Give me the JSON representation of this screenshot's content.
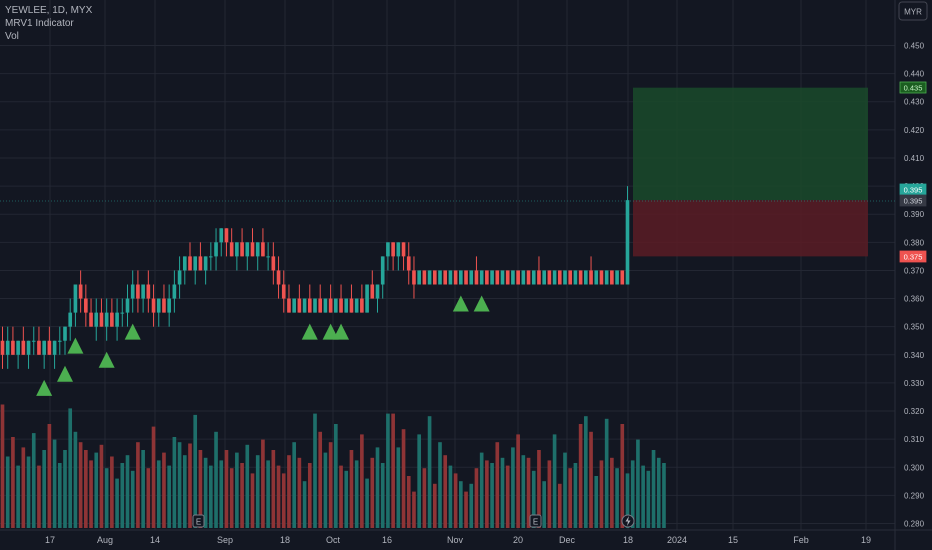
{
  "header": {
    "symbol_line": "YEWLEE, 1D, MYX",
    "indicator": "MRV1 Indicator",
    "volume": "Vol"
  },
  "currency": "MYR",
  "colors": {
    "background": "#131722",
    "grid": "#232733",
    "text": "#b2b5be",
    "up": "#26a69a",
    "down": "#ef5350",
    "signal": "#4caf50",
    "vol_up": "#1e6f6a",
    "vol_down": "#8e3436",
    "profit_zone": "#1a4a2a",
    "loss_zone": "#5a1c24"
  },
  "chart_data": {
    "type": "candlestick",
    "y_axis": {
      "min": 0.28,
      "max": 0.45,
      "ticks": [
        "0.450",
        "0.440",
        "0.430",
        "0.420",
        "0.410",
        "0.400",
        "0.390",
        "0.380",
        "0.370",
        "0.360",
        "0.350",
        "0.340",
        "0.330",
        "0.320",
        "0.310",
        "0.300",
        "0.290",
        "0.280"
      ]
    },
    "x_axis": {
      "ticks": [
        "17",
        "Aug",
        "14",
        "Sep",
        "18",
        "Oct",
        "16",
        "Nov",
        "20",
        "Dec",
        "18",
        "2024",
        "15",
        "Feb",
        "19"
      ]
    },
    "price_labels": [
      {
        "value": "0.435",
        "kind": "target"
      },
      {
        "value": "0.395",
        "kind": "current"
      },
      {
        "value": "0.395",
        "kind": "entry"
      },
      {
        "value": "0.375",
        "kind": "stop"
      }
    ],
    "levels": {
      "target": 0.435,
      "entry": 0.395,
      "stop": 0.375
    },
    "candles": [
      [
        0.345,
        0.35,
        0.335,
        0.34
      ],
      [
        0.34,
        0.35,
        0.335,
        0.345
      ],
      [
        0.345,
        0.35,
        0.34,
        0.34
      ],
      [
        0.34,
        0.345,
        0.335,
        0.345
      ],
      [
        0.345,
        0.35,
        0.34,
        0.34
      ],
      [
        0.34,
        0.345,
        0.335,
        0.345
      ],
      [
        0.345,
        0.35,
        0.34,
        0.345
      ],
      [
        0.345,
        0.35,
        0.34,
        0.34
      ],
      [
        0.34,
        0.345,
        0.335,
        0.345
      ],
      [
        0.345,
        0.35,
        0.34,
        0.34
      ],
      [
        0.34,
        0.345,
        0.335,
        0.345
      ],
      [
        0.345,
        0.35,
        0.34,
        0.345
      ],
      [
        0.345,
        0.35,
        0.34,
        0.35
      ],
      [
        0.35,
        0.36,
        0.345,
        0.355
      ],
      [
        0.355,
        0.365,
        0.35,
        0.365
      ],
      [
        0.365,
        0.37,
        0.355,
        0.36
      ],
      [
        0.36,
        0.365,
        0.35,
        0.355
      ],
      [
        0.355,
        0.36,
        0.35,
        0.35
      ],
      [
        0.35,
        0.36,
        0.345,
        0.355
      ],
      [
        0.355,
        0.36,
        0.35,
        0.35
      ],
      [
        0.35,
        0.36,
        0.345,
        0.355
      ],
      [
        0.355,
        0.36,
        0.35,
        0.35
      ],
      [
        0.35,
        0.36,
        0.345,
        0.355
      ],
      [
        0.355,
        0.36,
        0.35,
        0.355
      ],
      [
        0.355,
        0.365,
        0.35,
        0.36
      ],
      [
        0.36,
        0.37,
        0.355,
        0.365
      ],
      [
        0.365,
        0.37,
        0.355,
        0.36
      ],
      [
        0.36,
        0.365,
        0.355,
        0.365
      ],
      [
        0.365,
        0.37,
        0.355,
        0.36
      ],
      [
        0.36,
        0.365,
        0.35,
        0.355
      ],
      [
        0.355,
        0.36,
        0.35,
        0.36
      ],
      [
        0.36,
        0.365,
        0.355,
        0.355
      ],
      [
        0.355,
        0.365,
        0.35,
        0.36
      ],
      [
        0.36,
        0.37,
        0.355,
        0.365
      ],
      [
        0.365,
        0.375,
        0.36,
        0.37
      ],
      [
        0.37,
        0.375,
        0.365,
        0.375
      ],
      [
        0.375,
        0.38,
        0.37,
        0.37
      ],
      [
        0.37,
        0.375,
        0.365,
        0.375
      ],
      [
        0.375,
        0.38,
        0.37,
        0.37
      ],
      [
        0.37,
        0.375,
        0.365,
        0.375
      ],
      [
        0.375,
        0.38,
        0.37,
        0.375
      ],
      [
        0.375,
        0.385,
        0.37,
        0.38
      ],
      [
        0.38,
        0.385,
        0.375,
        0.385
      ],
      [
        0.385,
        0.385,
        0.375,
        0.38
      ],
      [
        0.38,
        0.385,
        0.375,
        0.375
      ],
      [
        0.375,
        0.38,
        0.37,
        0.38
      ],
      [
        0.38,
        0.385,
        0.375,
        0.375
      ],
      [
        0.375,
        0.38,
        0.37,
        0.38
      ],
      [
        0.38,
        0.385,
        0.375,
        0.375
      ],
      [
        0.375,
        0.38,
        0.37,
        0.38
      ],
      [
        0.38,
        0.385,
        0.375,
        0.375
      ],
      [
        0.375,
        0.38,
        0.37,
        0.375
      ],
      [
        0.375,
        0.38,
        0.365,
        0.37
      ],
      [
        0.37,
        0.375,
        0.36,
        0.365
      ],
      [
        0.365,
        0.37,
        0.355,
        0.36
      ],
      [
        0.36,
        0.365,
        0.355,
        0.355
      ],
      [
        0.355,
        0.36,
        0.355,
        0.36
      ],
      [
        0.36,
        0.365,
        0.355,
        0.355
      ],
      [
        0.355,
        0.36,
        0.355,
        0.36
      ],
      [
        0.36,
        0.365,
        0.355,
        0.355
      ],
      [
        0.355,
        0.36,
        0.355,
        0.36
      ],
      [
        0.36,
        0.365,
        0.355,
        0.355
      ],
      [
        0.355,
        0.36,
        0.355,
        0.36
      ],
      [
        0.36,
        0.365,
        0.355,
        0.355
      ],
      [
        0.355,
        0.36,
        0.355,
        0.36
      ],
      [
        0.36,
        0.365,
        0.355,
        0.355
      ],
      [
        0.355,
        0.36,
        0.355,
        0.36
      ],
      [
        0.36,
        0.365,
        0.355,
        0.355
      ],
      [
        0.355,
        0.36,
        0.355,
        0.36
      ],
      [
        0.36,
        0.365,
        0.355,
        0.355
      ],
      [
        0.355,
        0.365,
        0.355,
        0.365
      ],
      [
        0.365,
        0.37,
        0.36,
        0.36
      ],
      [
        0.36,
        0.365,
        0.355,
        0.365
      ],
      [
        0.365,
        0.375,
        0.36,
        0.375
      ],
      [
        0.375,
        0.38,
        0.37,
        0.38
      ],
      [
        0.38,
        0.38,
        0.37,
        0.375
      ],
      [
        0.375,
        0.38,
        0.37,
        0.38
      ],
      [
        0.38,
        0.38,
        0.37,
        0.375
      ],
      [
        0.375,
        0.38,
        0.365,
        0.37
      ],
      [
        0.37,
        0.375,
        0.36,
        0.365
      ],
      [
        0.365,
        0.37,
        0.365,
        0.37
      ],
      [
        0.37,
        0.37,
        0.365,
        0.365
      ],
      [
        0.365,
        0.37,
        0.365,
        0.37
      ],
      [
        0.37,
        0.37,
        0.365,
        0.365
      ],
      [
        0.365,
        0.37,
        0.365,
        0.37
      ],
      [
        0.37,
        0.37,
        0.365,
        0.365
      ],
      [
        0.365,
        0.37,
        0.365,
        0.37
      ],
      [
        0.37,
        0.37,
        0.365,
        0.365
      ],
      [
        0.365,
        0.37,
        0.365,
        0.37
      ],
      [
        0.37,
        0.37,
        0.365,
        0.365
      ],
      [
        0.365,
        0.37,
        0.365,
        0.37
      ],
      [
        0.37,
        0.375,
        0.365,
        0.365
      ],
      [
        0.365,
        0.37,
        0.365,
        0.37
      ],
      [
        0.37,
        0.37,
        0.365,
        0.365
      ],
      [
        0.365,
        0.37,
        0.365,
        0.37
      ],
      [
        0.37,
        0.37,
        0.365,
        0.365
      ],
      [
        0.365,
        0.37,
        0.365,
        0.37
      ],
      [
        0.37,
        0.37,
        0.365,
        0.365
      ],
      [
        0.365,
        0.37,
        0.365,
        0.37
      ],
      [
        0.37,
        0.37,
        0.365,
        0.365
      ],
      [
        0.365,
        0.37,
        0.365,
        0.37
      ],
      [
        0.37,
        0.37,
        0.365,
        0.365
      ],
      [
        0.365,
        0.37,
        0.365,
        0.37
      ],
      [
        0.37,
        0.375,
        0.365,
        0.365
      ],
      [
        0.365,
        0.37,
        0.365,
        0.37
      ],
      [
        0.37,
        0.37,
        0.365,
        0.365
      ],
      [
        0.365,
        0.37,
        0.365,
        0.37
      ],
      [
        0.37,
        0.37,
        0.365,
        0.365
      ],
      [
        0.365,
        0.37,
        0.365,
        0.37
      ],
      [
        0.37,
        0.37,
        0.365,
        0.365
      ],
      [
        0.365,
        0.37,
        0.365,
        0.37
      ],
      [
        0.37,
        0.37,
        0.365,
        0.365
      ],
      [
        0.365,
        0.37,
        0.365,
        0.37
      ],
      [
        0.37,
        0.375,
        0.365,
        0.365
      ],
      [
        0.365,
        0.37,
        0.365,
        0.37
      ],
      [
        0.37,
        0.37,
        0.365,
        0.365
      ],
      [
        0.365,
        0.37,
        0.365,
        0.37
      ],
      [
        0.37,
        0.37,
        0.365,
        0.365
      ],
      [
        0.365,
        0.37,
        0.365,
        0.37
      ],
      [
        0.37,
        0.37,
        0.365,
        0.365
      ],
      [
        0.365,
        0.4,
        0.365,
        0.395
      ]
    ],
    "volume": [
      0.95,
      0.55,
      0.7,
      0.48,
      0.62,
      0.55,
      0.73,
      0.48,
      0.6,
      0.8,
      0.68,
      0.5,
      0.6,
      0.92,
      0.74,
      0.66,
      0.6,
      0.52,
      0.58,
      0.64,
      0.46,
      0.55,
      0.38,
      0.5,
      0.56,
      0.44,
      0.66,
      0.6,
      0.46,
      0.78,
      0.52,
      0.58,
      0.48,
      0.7,
      0.66,
      0.56,
      0.65,
      0.87,
      0.6,
      0.54,
      0.48,
      0.74,
      0.52,
      0.6,
      0.46,
      0.58,
      0.5,
      0.64,
      0.42,
      0.56,
      0.68,
      0.52,
      0.6,
      0.48,
      0.42,
      0.56,
      0.66,
      0.54,
      0.36,
      0.5,
      0.88,
      0.74,
      0.58,
      0.66,
      0.8,
      0.48,
      0.44,
      0.6,
      0.52,
      0.72,
      0.38,
      0.54,
      0.62,
      0.5,
      0.88,
      0.88,
      0.62,
      0.76,
      0.4,
      0.28,
      0.72,
      0.46,
      0.86,
      0.34,
      0.66,
      0.56,
      0.48,
      0.42,
      0.36,
      0.28,
      0.34,
      0.46,
      0.58,
      0.52,
      0.5,
      0.66,
      0.54,
      0.48,
      0.62,
      0.72,
      0.56,
      0.54,
      0.44,
      0.6,
      0.36,
      0.52,
      0.72,
      0.34,
      0.58,
      0.46,
      0.5,
      0.8,
      0.86,
      0.74,
      0.4,
      0.52,
      0.84,
      0.54,
      0.46,
      0.8,
      0.42,
      0.52,
      0.68,
      0.48,
      0.44,
      0.6,
      0.54,
      0.5
    ],
    "volume_max_label": "",
    "signals": [
      8,
      12,
      14,
      20,
      25,
      59,
      63,
      65,
      88,
      92
    ]
  }
}
